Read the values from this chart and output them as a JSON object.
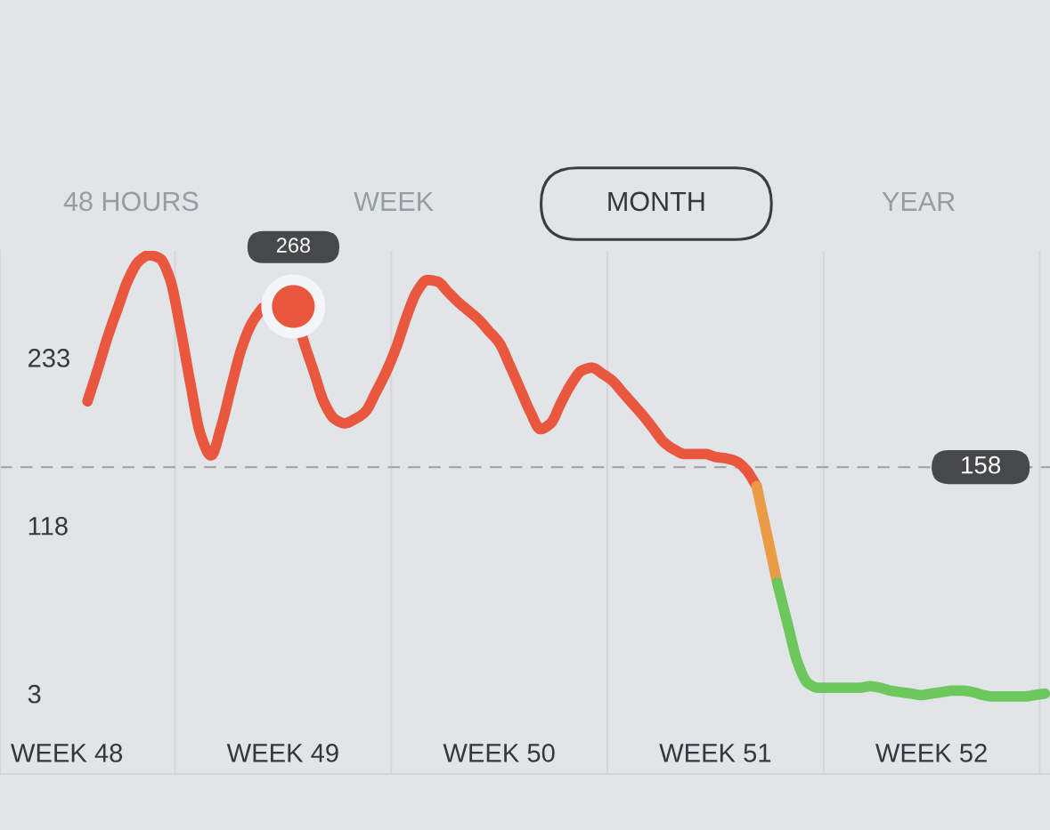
{
  "chart_data": {
    "type": "line",
    "annotations": [
      "48 HOURS",
      "WEEK",
      "MONTH",
      "YEAR",
      {
        "text": "268",
        "y": 268
      }
    ],
    "categories": [
      "WEEK 48",
      null,
      null,
      null,
      null,
      null,
      null,
      null,
      null,
      null,
      null,
      null,
      null,
      null,
      null,
      null,
      null,
      null,
      null,
      null,
      null,
      "WEEK 49",
      null,
      null,
      null,
      null,
      null,
      null,
      null,
      null,
      null,
      null,
      null,
      null,
      null,
      null,
      null,
      null,
      null,
      null,
      null,
      null,
      "WEEK 50",
      null,
      null,
      null,
      null,
      null,
      null,
      null,
      null,
      null,
      null,
      null,
      null,
      null,
      null,
      null,
      null,
      null,
      null,
      null,
      null,
      "WEEK 51",
      null,
      null,
      null,
      null,
      null,
      null,
      null,
      null,
      null,
      null,
      null,
      null,
      null,
      null,
      null,
      null,
      null,
      null,
      null,
      null,
      "WEEK 52",
      null,
      null,
      null,
      null,
      null,
      null,
      null,
      null,
      null,
      null,
      null
    ],
    "ylim": [
      -52,
      306
    ],
    "yticks": [
      3,
      118,
      233
    ],
    "grid": "x",
    "ref_lines": [
      {
        "axis": "y",
        "value": 158,
        "label": "158",
        "line_style": "dashed",
        "color": "#a5a8ab"
      }
    ],
    "series": [
      {
        "color": "#e9573f",
        "values": [
          null,
          null,
          203,
          225,
          248,
          268,
          287,
          299,
          303,
          301,
          287,
          254,
          215,
          180,
          166,
          186,
          214,
          240,
          257,
          267,
          null,
          null,
          268,
          244,
          223,
          202,
          191,
          188,
          191,
          196,
          209,
          223,
          240,
          261,
          278,
          286,
          285,
          278,
          271,
          265,
          259,
          251,
          243,
          228,
          212,
          196,
          184,
          188,
          202,
          215,
          224,
          226,
          222,
          217,
          209,
          201,
          193,
          184,
          175,
          170,
          167,
          167,
          167,
          165,
          164,
          162,
          156,
          145,
          null,
          null,
          null,
          null,
          null,
          null,
          null,
          null,
          null,
          null,
          null,
          null,
          null,
          null,
          null,
          null,
          null,
          null,
          null,
          null,
          null,
          null,
          null,
          null,
          null,
          null,
          null,
          null
        ]
      },
      {
        "color": "#eb9a45",
        "values": [
          null,
          null,
          null,
          null,
          null,
          null,
          null,
          null,
          null,
          null,
          null,
          null,
          null,
          null,
          null,
          null,
          null,
          null,
          null,
          null,
          null,
          null,
          null,
          null,
          null,
          null,
          null,
          null,
          null,
          null,
          null,
          null,
          null,
          null,
          null,
          null,
          null,
          null,
          null,
          null,
          null,
          null,
          null,
          null,
          null,
          null,
          null,
          null,
          null,
          null,
          null,
          null,
          null,
          null,
          null,
          null,
          null,
          null,
          null,
          null,
          null,
          null,
          null,
          null,
          null,
          null,
          null,
          145,
          112,
          79,
          null,
          null,
          null,
          null,
          null,
          null,
          null,
          null,
          null,
          null,
          null,
          null,
          null,
          null,
          null,
          null,
          null,
          null,
          null,
          null,
          null,
          null,
          null,
          null,
          null,
          null
        ]
      },
      {
        "color": "#6cc85c",
        "values": [
          null,
          null,
          null,
          null,
          null,
          null,
          null,
          null,
          null,
          null,
          null,
          null,
          null,
          null,
          null,
          null,
          null,
          null,
          null,
          null,
          null,
          null,
          null,
          null,
          null,
          null,
          null,
          null,
          null,
          null,
          null,
          null,
          null,
          null,
          null,
          null,
          null,
          null,
          null,
          null,
          null,
          null,
          null,
          null,
          null,
          null,
          null,
          null,
          null,
          null,
          null,
          null,
          null,
          null,
          null,
          null,
          null,
          null,
          null,
          null,
          null,
          null,
          null,
          null,
          null,
          null,
          null,
          null,
          null,
          79,
          51,
          24,
          10,
          7,
          7,
          7,
          7,
          7,
          8,
          7,
          5,
          4,
          3,
          2,
          3,
          4,
          5,
          5,
          4,
          2,
          1,
          1,
          1,
          1,
          2,
          3
        ]
      },
      {
        "type": "scatter",
        "marker": "circle",
        "color": "#e9573f",
        "values": [
          null,
          null,
          null,
          null,
          null,
          null,
          null,
          null,
          null,
          null,
          null,
          null,
          null,
          null,
          null,
          null,
          null,
          null,
          null,
          null,
          null,
          null,
          268,
          null,
          null,
          null,
          null,
          null,
          null,
          null,
          null,
          null,
          null,
          null,
          null,
          null,
          null,
          null,
          null,
          null,
          null,
          null,
          null,
          null,
          null,
          null,
          null,
          null,
          null,
          null,
          null,
          null,
          null,
          null,
          null,
          null,
          null,
          null,
          null,
          null,
          null,
          null,
          null,
          null,
          null,
          null,
          null,
          null,
          null,
          null,
          null,
          null,
          null,
          null,
          null,
          null,
          null,
          null,
          null,
          null,
          null,
          null,
          null,
          null,
          null,
          null,
          null,
          null,
          null,
          null,
          null,
          null,
          null,
          null,
          null,
          null
        ]
      }
    ]
  }
}
